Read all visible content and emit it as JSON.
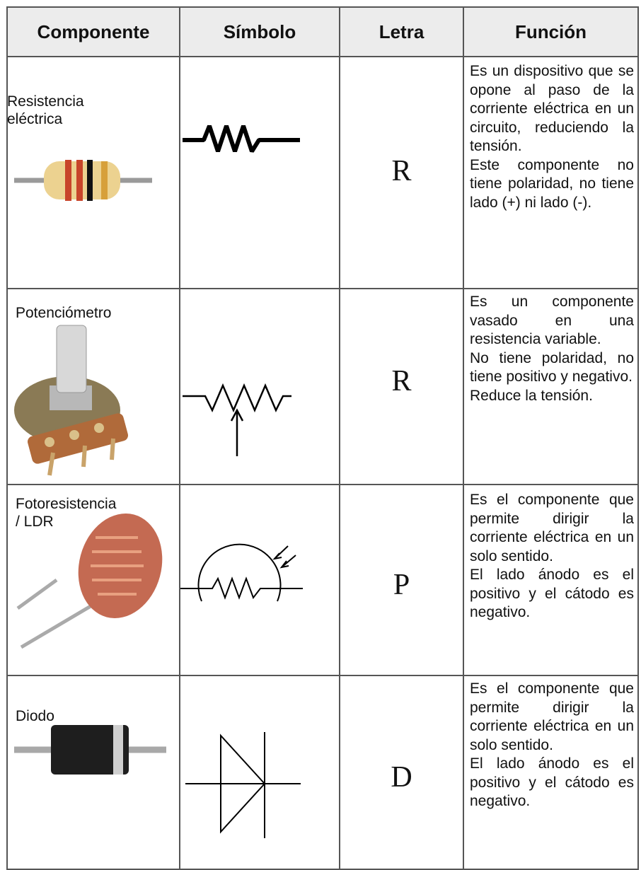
{
  "table": {
    "header": [
      "Componente",
      "Símbolo",
      "Letra",
      "Función"
    ],
    "rows": [
      {
        "component": [
          "Resistencia",
          "eléctrica"
        ],
        "letter": "R",
        "function": [
          "Es un dispositivo que se opone al paso de la corriente eléctrica en un circuito, reduciendo la tensión.",
          "Este componente no tiene polaridad, no tiene lado (+) ni lado (-)."
        ]
      },
      {
        "component": [
          "Potenciómetro"
        ],
        "letter": "R",
        "function": [
          "Es un componente vasado en una resistencia variable.",
          "No tiene polaridad, no tiene positivo y negativo.",
          "Reduce la tensión."
        ]
      },
      {
        "component": [
          "Fotoresistencia",
          "/ LDR"
        ],
        "letter": "P",
        "function": [
          "Es el componente que permite dirigir la corriente eléctrica en un solo sentido.",
          "El lado ánodo es el positivo y el cátodo es negativo."
        ]
      },
      {
        "component": [
          "Diodo"
        ],
        "letter": "D",
        "function": [
          "Es el componente que permite dirigir la corriente eléctrica en un solo sentido.",
          "El lado ánodo es el positivo y el cátodo es negativo."
        ]
      }
    ]
  }
}
